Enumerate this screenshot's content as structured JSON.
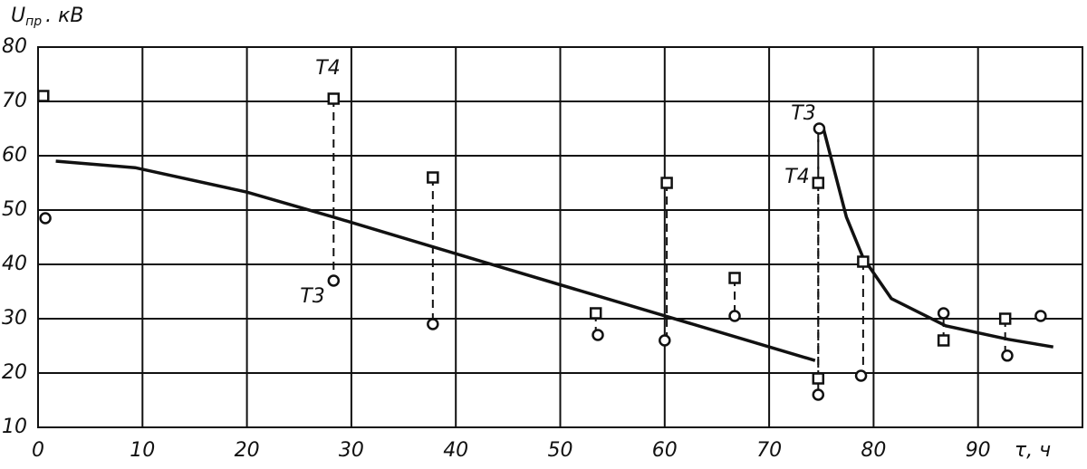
{
  "chart_data": {
    "type": "scatter",
    "y_label": {
      "symbol": "U",
      "subscript": "пр",
      "unit": ". кВ"
    },
    "x_label": "τ, ч",
    "xlim": [
      0,
      100
    ],
    "ylim": [
      10,
      80
    ],
    "xticks": [
      0,
      10,
      20,
      30,
      40,
      50,
      60,
      70,
      80,
      90
    ],
    "yticks": [
      10,
      20,
      30,
      40,
      50,
      60,
      70,
      80
    ],
    "grid": true,
    "series": [
      {
        "marker": "square",
        "color": "#111",
        "x": [
          0.5,
          28.3,
          37.8,
          53.4,
          60.2,
          66.7,
          74.7,
          74.7,
          79,
          86.7,
          92.6
        ],
        "values": [
          71,
          70.5,
          56,
          31,
          55,
          37.5,
          55,
          19,
          40.5,
          26,
          30
        ]
      },
      {
        "marker": "circle",
        "color": "#111",
        "x": [
          0.7,
          28.3,
          37.8,
          53.6,
          60,
          66.7,
          74.8,
          74.7,
          78.8,
          86.7,
          92.8,
          96
        ],
        "values": [
          48.5,
          37,
          29,
          27,
          26,
          30.5,
          65,
          16,
          19.5,
          31,
          23.2,
          30.5
        ]
      }
    ],
    "curves": [
      {
        "color": "#111",
        "x": [
          1.7,
          9.3,
          20,
          28.3,
          42.9,
          59.7,
          74.4
        ],
        "values": [
          59,
          57.8,
          53.3,
          48.7,
          40.3,
          30.7,
          22.3
        ]
      },
      {
        "color": "#111",
        "x": [
          75.2,
          77.4,
          79,
          81.7,
          86.9,
          92.9,
          97.2
        ],
        "values": [
          65,
          48.7,
          41.2,
          33.7,
          28.7,
          26.2,
          24.8
        ]
      }
    ],
    "annotations": [
      "T4",
      "T3",
      "T3",
      "T4"
    ]
  }
}
